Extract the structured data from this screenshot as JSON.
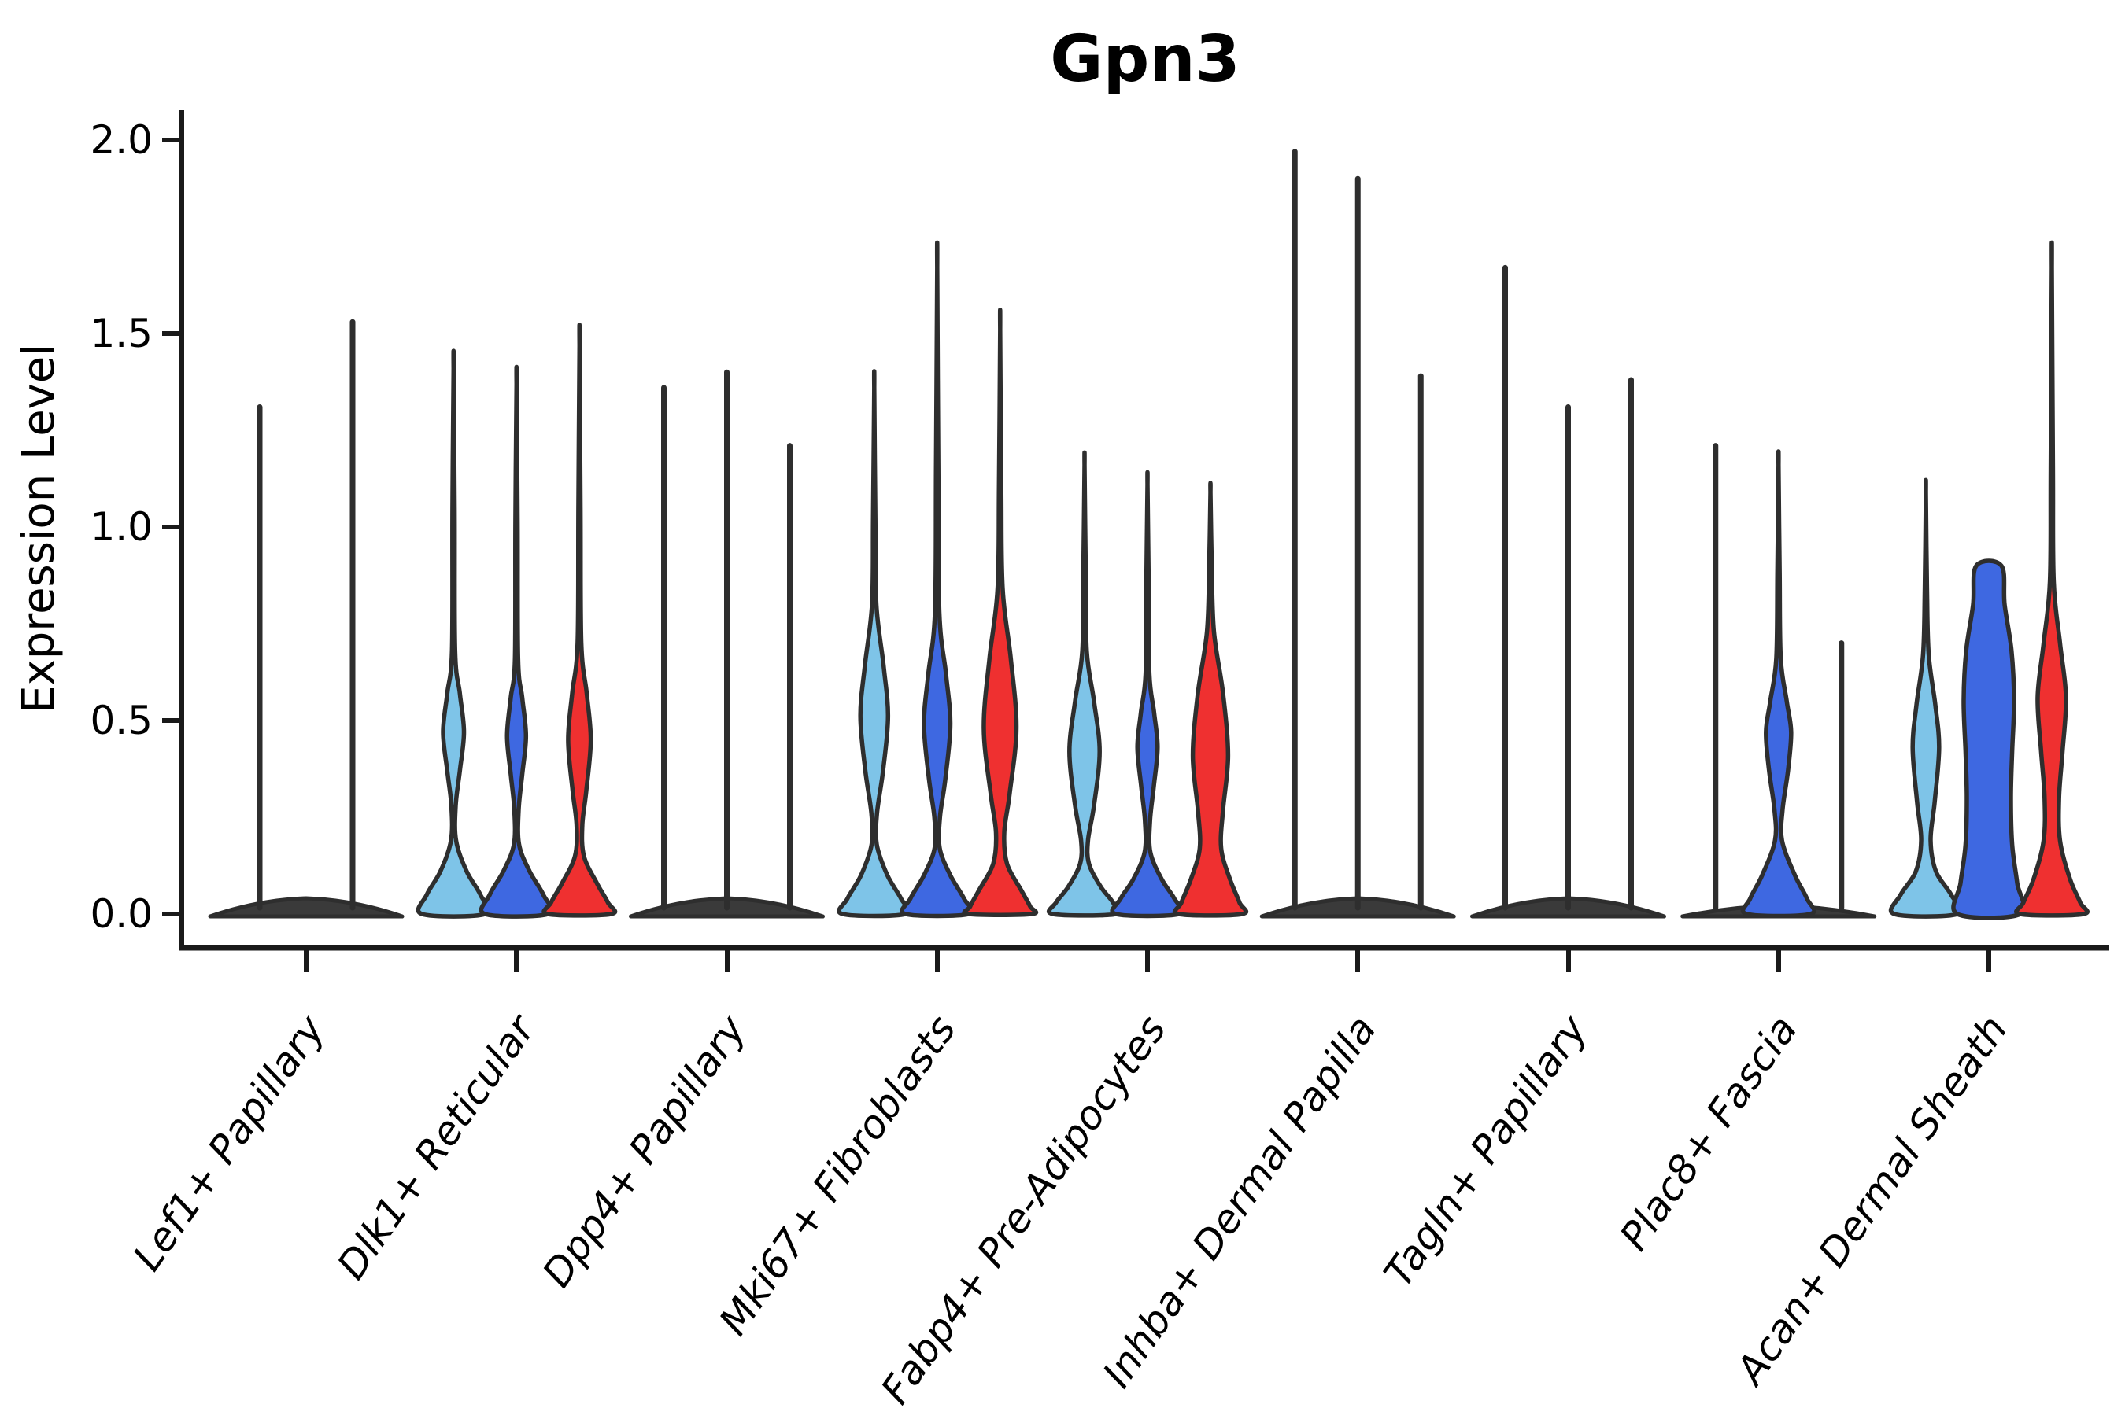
{
  "chart_data": {
    "type": "violin",
    "title": "Gpn3",
    "ylabel": "Expression Level",
    "xlabel": "",
    "ylim": [
      0,
      2.05
    ],
    "grid": false,
    "legend": "none",
    "y_ticks": [
      "0.0",
      "0.5",
      "1.0",
      "1.5",
      "2.0"
    ],
    "y_tick_values": [
      0.0,
      0.5,
      1.0,
      1.5,
      2.0
    ],
    "categories": [
      "Lef1+ Papillary",
      "Dlk1+ Reticular",
      "Dpp4+ Papillary",
      "Mki67+ Fibroblasts",
      "Fabp4+ Pre-Adipocytes",
      "Inhba+ Dermal Papilla",
      "Tagln+ Papillary",
      "Plac8+ Fascia",
      "Acan+ Dermal Sheath"
    ],
    "palette": {
      "light_blue": "#7EC4E8",
      "royal_blue": "#3E68E1",
      "red": "#EF3030",
      "outline": "#2E2E2E",
      "flat_fill": "#3A3A3A",
      "background": "#FFFFFF"
    },
    "groups": [
      {
        "category": "Lef1+ Papillary",
        "base": "dome",
        "violins": [
          {
            "kind": "spike",
            "color": null,
            "max": 1.31,
            "offset": -59
          },
          {
            "kind": "spike",
            "color": null,
            "max": 1.53,
            "offset": 59
          }
        ]
      },
      {
        "category": "Dlk1+ Reticular",
        "base": null,
        "violins": [
          {
            "kind": "violin",
            "color": "light_blue",
            "max": 1.41,
            "offset": -80,
            "profile": [
              [
                1.41,
                0
              ],
              [
                1.05,
                0.035
              ],
              [
                0.68,
                0.05
              ],
              [
                0.57,
                0.2
              ],
              [
                0.47,
                0.33
              ],
              [
                0.37,
                0.2
              ],
              [
                0.28,
                0.07
              ],
              [
                0.19,
                0.08
              ],
              [
                0.11,
                0.42
              ],
              [
                0.05,
                0.85
              ],
              [
                0,
                1
              ]
            ]
          },
          {
            "kind": "violin",
            "color": "royal_blue",
            "max": 1.37,
            "offset": 0,
            "profile": [
              [
                1.37,
                0
              ],
              [
                1.02,
                0.035
              ],
              [
                0.66,
                0.05
              ],
              [
                0.56,
                0.18
              ],
              [
                0.46,
                0.3
              ],
              [
                0.36,
                0.18
              ],
              [
                0.27,
                0.07
              ],
              [
                0.18,
                0.08
              ],
              [
                0.11,
                0.42
              ],
              [
                0.05,
                0.85
              ],
              [
                0,
                1
              ]
            ]
          },
          {
            "kind": "violin",
            "color": "red",
            "max": 1.47,
            "offset": 80,
            "profile": [
              [
                1.47,
                0
              ],
              [
                1.05,
                0.035
              ],
              [
                0.7,
                0.06
              ],
              [
                0.57,
                0.23
              ],
              [
                0.45,
                0.36
              ],
              [
                0.32,
                0.22
              ],
              [
                0.23,
                0.09
              ],
              [
                0.15,
                0.14
              ],
              [
                0.08,
                0.55
              ],
              [
                0.03,
                0.9
              ],
              [
                0,
                1
              ]
            ]
          }
        ]
      },
      {
        "category": "Dpp4+ Papillary",
        "base": "dome",
        "violins": [
          {
            "kind": "spike",
            "color": null,
            "max": 1.36,
            "offset": -80
          },
          {
            "kind": "spike",
            "color": null,
            "max": 1.4,
            "offset": 0
          },
          {
            "kind": "spike",
            "color": null,
            "max": 1.21,
            "offset": 80
          }
        ]
      },
      {
        "category": "Mki67+ Fibroblasts",
        "base": null,
        "violins": [
          {
            "kind": "violin",
            "color": "light_blue",
            "max": 1.36,
            "offset": -80,
            "profile": [
              [
                1.36,
                0
              ],
              [
                1.02,
                0.035
              ],
              [
                0.8,
                0.07
              ],
              [
                0.64,
                0.3
              ],
              [
                0.51,
                0.44
              ],
              [
                0.37,
                0.28
              ],
              [
                0.26,
                0.09
              ],
              [
                0.18,
                0.08
              ],
              [
                0.1,
                0.42
              ],
              [
                0.04,
                0.85
              ],
              [
                0,
                1
              ]
            ]
          },
          {
            "kind": "violin",
            "color": "royal_blue",
            "max": 1.67,
            "offset": 0,
            "profile": [
              [
                1.67,
                0
              ],
              [
                1.15,
                0.035
              ],
              [
                0.78,
                0.07
              ],
              [
                0.62,
                0.28
              ],
              [
                0.49,
                0.42
              ],
              [
                0.35,
                0.26
              ],
              [
                0.25,
                0.09
              ],
              [
                0.17,
                0.08
              ],
              [
                0.1,
                0.42
              ],
              [
                0.04,
                0.85
              ],
              [
                0,
                1
              ]
            ]
          },
          {
            "kind": "violin",
            "color": "red",
            "max": 1.51,
            "offset": 80,
            "profile": [
              [
                1.51,
                0
              ],
              [
                1.1,
                0.035
              ],
              [
                0.84,
                0.08
              ],
              [
                0.66,
                0.34
              ],
              [
                0.48,
                0.52
              ],
              [
                0.31,
                0.3
              ],
              [
                0.21,
                0.13
              ],
              [
                0.13,
                0.22
              ],
              [
                0.06,
                0.68
              ],
              [
                0.02,
                0.95
              ],
              [
                0,
                1
              ]
            ]
          }
        ]
      },
      {
        "category": "Fabp4+ Pre-Adipocytes",
        "base": null,
        "violins": [
          {
            "kind": "violin",
            "color": "light_blue",
            "max": 1.16,
            "offset": -80,
            "profile": [
              [
                1.16,
                0
              ],
              [
                0.9,
                0.035
              ],
              [
                0.68,
                0.07
              ],
              [
                0.55,
                0.3
              ],
              [
                0.42,
                0.48
              ],
              [
                0.28,
                0.3
              ],
              [
                0.19,
                0.11
              ],
              [
                0.13,
                0.14
              ],
              [
                0.07,
                0.52
              ],
              [
                0.03,
                0.9
              ],
              [
                0,
                1
              ]
            ]
          },
          {
            "kind": "violin",
            "color": "royal_blue",
            "max": 1.11,
            "offset": 0,
            "profile": [
              [
                1.11,
                0
              ],
              [
                0.86,
                0.035
              ],
              [
                0.62,
                0.06
              ],
              [
                0.52,
                0.21
              ],
              [
                0.43,
                0.32
              ],
              [
                0.33,
                0.2
              ],
              [
                0.24,
                0.08
              ],
              [
                0.16,
                0.09
              ],
              [
                0.09,
                0.45
              ],
              [
                0.04,
                0.85
              ],
              [
                0,
                1
              ]
            ]
          },
          {
            "kind": "violin",
            "color": "red",
            "max": 1.09,
            "offset": 80,
            "profile": [
              [
                1.09,
                0
              ],
              [
                0.9,
                0.04
              ],
              [
                0.73,
                0.11
              ],
              [
                0.57,
                0.4
              ],
              [
                0.41,
                0.56
              ],
              [
                0.27,
                0.4
              ],
              [
                0.17,
                0.34
              ],
              [
                0.09,
                0.62
              ],
              [
                0.03,
                0.92
              ],
              [
                0,
                1
              ]
            ]
          }
        ]
      },
      {
        "category": "Inhba+ Dermal Papilla",
        "base": "dome",
        "violins": [
          {
            "kind": "spike",
            "color": null,
            "max": 1.97,
            "offset": -80
          },
          {
            "kind": "spike",
            "color": null,
            "max": 1.9,
            "offset": 0
          },
          {
            "kind": "spike",
            "color": null,
            "max": 1.39,
            "offset": 80
          }
        ]
      },
      {
        "category": "Tagln+ Papillary",
        "base": "dome",
        "violins": [
          {
            "kind": "spike",
            "color": null,
            "max": 1.67,
            "offset": -80
          },
          {
            "kind": "spike",
            "color": null,
            "max": 1.31,
            "offset": 0
          },
          {
            "kind": "spike",
            "color": null,
            "max": 1.38,
            "offset": 80
          }
        ]
      },
      {
        "category": "Plac8+ Fascia",
        "base": "line",
        "violins": [
          {
            "kind": "spike",
            "color": null,
            "max": 1.21,
            "offset": -80
          },
          {
            "kind": "violin",
            "color": "royal_blue",
            "max": 1.16,
            "offset": 0,
            "profile": [
              [
                1.16,
                0
              ],
              [
                0.88,
                0.035
              ],
              [
                0.66,
                0.07
              ],
              [
                0.55,
                0.26
              ],
              [
                0.47,
                0.4
              ],
              [
                0.37,
                0.3
              ],
              [
                0.27,
                0.13
              ],
              [
                0.19,
                0.11
              ],
              [
                0.1,
                0.52
              ],
              [
                0.04,
                0.9
              ],
              [
                0,
                1
              ]
            ]
          },
          {
            "kind": "spike",
            "color": null,
            "max": 0.7,
            "offset": 80
          }
        ]
      },
      {
        "category": "Acan+ Dermal Sheath",
        "base": null,
        "violins": [
          {
            "kind": "violin",
            "color": "light_blue",
            "max": 1.09,
            "offset": -80,
            "profile": [
              [
                1.09,
                0
              ],
              [
                0.84,
                0.035
              ],
              [
                0.67,
                0.09
              ],
              [
                0.54,
                0.3
              ],
              [
                0.43,
                0.42
              ],
              [
                0.29,
                0.28
              ],
              [
                0.19,
                0.15
              ],
              [
                0.11,
                0.32
              ],
              [
                0.05,
                0.8
              ],
              [
                0,
                1
              ]
            ]
          },
          {
            "kind": "violin",
            "color": "royal_blue",
            "max": 0.9,
            "offset": 0,
            "blunt_top": true,
            "profile": [
              [
                0.9,
                0.4
              ],
              [
                0.8,
                0.5
              ],
              [
                0.68,
                0.72
              ],
              [
                0.55,
                0.8
              ],
              [
                0.42,
                0.74
              ],
              [
                0.3,
                0.7
              ],
              [
                0.18,
                0.74
              ],
              [
                0.08,
                0.9
              ],
              [
                0,
                1
              ]
            ]
          },
          {
            "kind": "violin",
            "color": "red",
            "max": 1.67,
            "offset": 80,
            "profile": [
              [
                1.67,
                0
              ],
              [
                1.15,
                0.035
              ],
              [
                0.86,
                0.06
              ],
              [
                0.7,
                0.26
              ],
              [
                0.56,
                0.45
              ],
              [
                0.42,
                0.34
              ],
              [
                0.3,
                0.23
              ],
              [
                0.19,
                0.26
              ],
              [
                0.09,
                0.58
              ],
              [
                0.03,
                0.9
              ],
              [
                0,
                1
              ]
            ]
          }
        ]
      }
    ]
  }
}
